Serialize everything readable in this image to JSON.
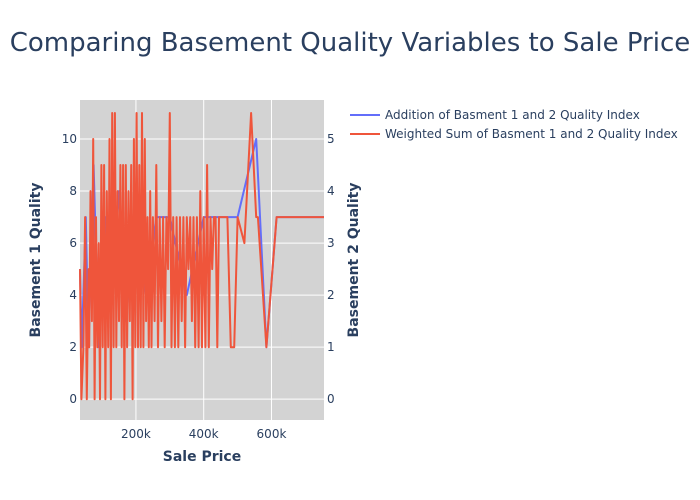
{
  "chart_data": {
    "type": "line",
    "title": "Comparing Basement Quality Variables to Sale Price",
    "xlabel": "Sale Price",
    "ylabel": "Basement 1 Quality",
    "y2label": "Basement 2 Quality",
    "xlim": [
      34900,
      755000
    ],
    "ylim": [
      -0.8,
      11.5
    ],
    "y2lim": [
      -0.4,
      5.75
    ],
    "x_ticks": [
      200000,
      400000,
      600000
    ],
    "x_tick_labels": [
      "200k",
      "400k",
      "600k"
    ],
    "y_ticks": [
      0,
      2,
      4,
      6,
      8,
      10
    ],
    "y2_ticks": [
      0,
      1,
      2,
      3,
      4,
      5
    ],
    "grid": true,
    "legend_position": "top-right",
    "series": [
      {
        "name": "Addition of Basment 1 and 2 Quality Index",
        "color": "#636efa",
        "axis": "y2",
        "x": [
          34900,
          40000,
          52000,
          60000,
          75000,
          90000,
          110000,
          130000,
          150000,
          170000,
          200000,
          230000,
          260000,
          300000,
          350000,
          400000,
          450000,
          500000,
          555000,
          585000,
          615000,
          700000,
          755000
        ],
        "values": [
          2.5,
          1,
          3.5,
          1,
          4.5,
          1,
          3.5,
          2,
          4,
          1.5,
          3.5,
          2,
          3.5,
          3.5,
          2,
          3.5,
          3.5,
          3.5,
          5,
          1,
          3.5,
          3.5,
          3.5
        ]
      },
      {
        "name": "Weighted Sum of Basment 1 and 2 Quality Index",
        "color": "#ef553b",
        "axis": "y",
        "x": [
          34900,
          39000,
          45000,
          50000,
          55000,
          60000,
          62000,
          66000,
          70000,
          74000,
          78000,
          82000,
          86000,
          90000,
          94000,
          98000,
          102000,
          106000,
          110000,
          114000,
          118000,
          122000,
          126000,
          130000,
          134000,
          138000,
          142000,
          146000,
          150000,
          154000,
          158000,
          162000,
          166000,
          170000,
          174000,
          178000,
          182000,
          186000,
          190000,
          194000,
          198000,
          202000,
          206000,
          210000,
          214000,
          218000,
          222000,
          226000,
          230000,
          234000,
          238000,
          242000,
          246000,
          250000,
          255000,
          260000,
          265000,
          270000,
          275000,
          280000,
          285000,
          290000,
          295000,
          300000,
          305000,
          310000,
          315000,
          320000,
          325000,
          330000,
          335000,
          340000,
          345000,
          350000,
          355000,
          360000,
          365000,
          370000,
          375000,
          380000,
          385000,
          390000,
          395000,
          400000,
          405000,
          410000,
          415000,
          420000,
          425000,
          430000,
          435000,
          440000,
          445000,
          450000,
          460000,
          470000,
          480000,
          490000,
          500000,
          520000,
          540000,
          555000,
          560000,
          585000,
          615000,
          650000,
          700000,
          755000
        ],
        "values": [
          5,
          0,
          2,
          7,
          0,
          5,
          2,
          8,
          3,
          10,
          0,
          7,
          2,
          6,
          0,
          9,
          2,
          9,
          0,
          8,
          2,
          10,
          0,
          11,
          2,
          11,
          2,
          8,
          3,
          9,
          2,
          9,
          0,
          9,
          2,
          8,
          3,
          9,
          0,
          10,
          2,
          11,
          2,
          9,
          2,
          11,
          2,
          10,
          3,
          7,
          2,
          8,
          2,
          7,
          3,
          9,
          2,
          7,
          3,
          7,
          2,
          7,
          5,
          11,
          2,
          7,
          2,
          7,
          2,
          7,
          3,
          7,
          2,
          7,
          5,
          7,
          3,
          7,
          2,
          7,
          2,
          8,
          2,
          7,
          2,
          9,
          2,
          7,
          5,
          7,
          7,
          2,
          7,
          7,
          7,
          7,
          2,
          2,
          7,
          6,
          11,
          7,
          7,
          2,
          7,
          7,
          7,
          7
        ]
      }
    ]
  }
}
